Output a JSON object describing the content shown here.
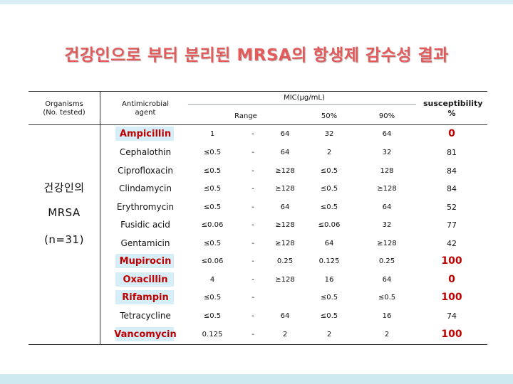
{
  "title": "건강인으로 부터 분리된 MRSA의 항생제 감수성 결과",
  "header": {
    "organisms": "Organisms (No. tested)",
    "agent": "Antimicrobial agent",
    "mic": "MIC(μg/mL)",
    "range": "Range",
    "p50": "50%",
    "p90": "90%",
    "susceptibility": "susceptibility %"
  },
  "organism": {
    "line1": "건강인의",
    "line2": "MRSA",
    "line3": "(n=31)"
  },
  "rows": [
    {
      "agent": "Ampicillin",
      "highlight": true,
      "r_low": "1",
      "dash": "-",
      "r_high": "64",
      "p50": "32",
      "p90": "64",
      "sus": "0"
    },
    {
      "agent": "Cephalothin",
      "highlight": false,
      "r_low": "≤0.5",
      "dash": "-",
      "r_high": "64",
      "p50": "2",
      "p90": "32",
      "sus": "81"
    },
    {
      "agent": "Ciprofloxacin",
      "highlight": false,
      "r_low": "≤0.5",
      "dash": "-",
      "r_high": "≥128",
      "p50": "≤0.5",
      "p90": "128",
      "sus": "84"
    },
    {
      "agent": "Clindamycin",
      "highlight": false,
      "r_low": "≤0.5",
      "dash": "-",
      "r_high": "≥128",
      "p50": "≤0.5",
      "p90": "≥128",
      "sus": "84"
    },
    {
      "agent": "Erythromycin",
      "highlight": false,
      "r_low": "≤0.5",
      "dash": "-",
      "r_high": "64",
      "p50": "≤0.5",
      "p90": "64",
      "sus": "52"
    },
    {
      "agent": "Fusidic acid",
      "highlight": false,
      "r_low": "≤0.06",
      "dash": "-",
      "r_high": "≥128",
      "p50": "≤0.06",
      "p90": "32",
      "sus": "77"
    },
    {
      "agent": "Gentamicin",
      "highlight": false,
      "r_low": "≤0.5",
      "dash": "-",
      "r_high": "≥128",
      "p50": "64",
      "p90": "≥128",
      "sus": "42"
    },
    {
      "agent": "Mupirocin",
      "highlight": true,
      "r_low": "≤0.06",
      "dash": "-",
      "r_high": "0.25",
      "p50": "0.125",
      "p90": "0.25",
      "sus": "100"
    },
    {
      "agent": "Oxacillin",
      "highlight": true,
      "r_low": "4",
      "dash": "-",
      "r_high": "≥128",
      "p50": "16",
      "p90": "64",
      "sus": "0"
    },
    {
      "agent": "Rifampin",
      "highlight": true,
      "r_low": "≤0.5",
      "dash": "-",
      "r_high": "",
      "p50": "≤0.5",
      "p90": "≤0.5",
      "sus": "100"
    },
    {
      "agent": "Tetracycline",
      "highlight": false,
      "r_low": "≤0.5",
      "dash": "-",
      "r_high": "64",
      "p50": "≤0.5",
      "p90": "16",
      "sus": "74"
    },
    {
      "agent": "Vancomycin",
      "highlight": true,
      "r_low": "0.125",
      "dash": "-",
      "r_high": "2",
      "p50": "2",
      "p90": "2",
      "sus": "100"
    }
  ]
}
